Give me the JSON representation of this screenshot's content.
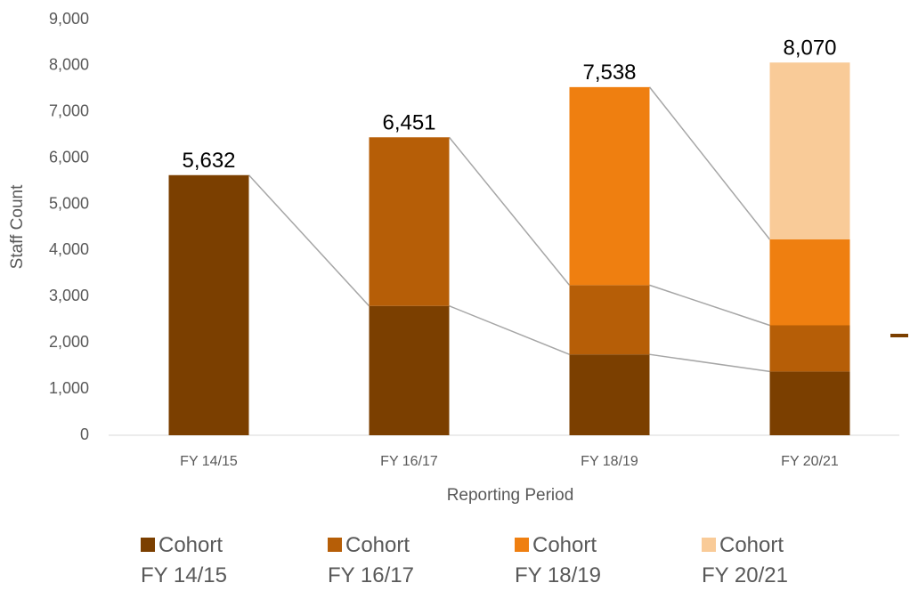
{
  "chart_data": {
    "type": "stacked_bar",
    "x_label": "Reporting Period",
    "y_label": "Staff Count",
    "categories": [
      "FY 14/15",
      "FY 16/17",
      "FY 18/19",
      "FY 20/21"
    ],
    "series": [
      {
        "name": "Cohort FY 14/15",
        "color": "#7b3f00",
        "values": [
          5632,
          2800,
          1750,
          1380
        ]
      },
      {
        "name": "Cohort FY 16/17",
        "color": "#b65e07",
        "values": [
          null,
          3651,
          1500,
          1000
        ]
      },
      {
        "name": "Cohort FY 18/19",
        "color": "#ef7f10",
        "values": [
          null,
          null,
          4288,
          1860
        ]
      },
      {
        "name": "Cohort FY 20/21",
        "color": "#f9cb98",
        "values": [
          null,
          null,
          null,
          3830
        ]
      }
    ],
    "totals": [
      5632,
      6451,
      7538,
      8070
    ],
    "value_labels": [
      "5,632",
      "6,451",
      "7,538",
      "8,070"
    ],
    "ylim": [
      0,
      9000
    ],
    "yticks": [
      0,
      {
        "value": 1000,
        "label": "1,000"
      },
      {
        "value": 2000,
        "label": "2,000"
      },
      {
        "value": 3000,
        "label": "3,000"
      },
      {
        "value": 4000,
        "label": "4,000"
      },
      {
        "value": 5000,
        "label": "5,000"
      },
      {
        "value": 6000,
        "label": "6,000"
      },
      {
        "value": 7000,
        "label": "7,000"
      },
      {
        "value": 8000,
        "label": "8,000"
      },
      {
        "value": 9000,
        "label": "9,000"
      }
    ],
    "connectors": true,
    "legend": "bottom"
  }
}
